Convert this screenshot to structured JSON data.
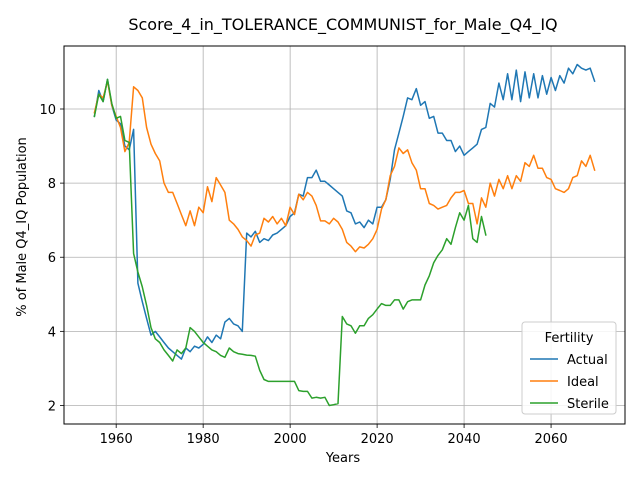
{
  "chart_data": {
    "type": "line",
    "title": "Score_4_in_TOLERANCE_COMMUNIST_for_Male_Q4_IQ",
    "xlabel": "Years",
    "ylabel": "% of Male Q4_IQ Population",
    "xlim": [
      1948,
      2077
    ],
    "ylim": [
      1.5,
      11.7
    ],
    "xticks": [
      1960,
      1980,
      2000,
      2020,
      2040,
      2060
    ],
    "yticks": [
      2,
      4,
      6,
      8,
      10
    ],
    "grid": true,
    "legend": {
      "title": "Fertility",
      "placement": "lower right"
    },
    "series": [
      {
        "name": "Actual",
        "color": "#1f77b4",
        "x": [
          1955,
          1956,
          1957,
          1958,
          1959,
          1960,
          1961,
          1962,
          1963,
          1964,
          1965,
          1966,
          1967,
          1968,
          1969,
          1970,
          1971,
          1972,
          1973,
          1974,
          1975,
          1976,
          1977,
          1978,
          1979,
          1980,
          1981,
          1982,
          1983,
          1984,
          1985,
          1986,
          1987,
          1988,
          1989,
          1990,
          1991,
          1992,
          1993,
          1994,
          1995,
          1996,
          1997,
          1998,
          1999,
          2000,
          2001,
          2002,
          2003,
          2004,
          2005,
          2006,
          2007,
          2008,
          2009,
          2010,
          2011,
          2012,
          2013,
          2014,
          2015,
          2016,
          2017,
          2018,
          2019,
          2020,
          2021,
          2022,
          2023,
          2024,
          2025,
          2026,
          2027,
          2028,
          2029,
          2030,
          2031,
          2032,
          2033,
          2034,
          2035,
          2036,
          2037,
          2038,
          2039,
          2040,
          2041,
          2042,
          2043,
          2044,
          2045,
          2046,
          2047,
          2048,
          2049,
          2050,
          2051,
          2052,
          2053,
          2054,
          2055,
          2056,
          2057,
          2058,
          2059,
          2060,
          2061,
          2062,
          2063,
          2064,
          2065,
          2066,
          2067,
          2068,
          2069,
          2070
        ],
        "values": [
          9.8,
          10.5,
          10.2,
          10.8,
          10.1,
          9.7,
          9.6,
          9.0,
          8.9,
          9.45,
          5.3,
          4.8,
          4.35,
          3.9,
          4.0,
          3.85,
          3.7,
          3.55,
          3.45,
          3.35,
          3.25,
          3.55,
          3.45,
          3.6,
          3.55,
          3.65,
          3.85,
          3.7,
          3.9,
          3.8,
          4.25,
          4.35,
          4.2,
          4.15,
          4.0,
          6.65,
          6.55,
          6.7,
          6.4,
          6.5,
          6.45,
          6.6,
          6.65,
          6.75,
          6.85,
          7.1,
          7.2,
          7.7,
          7.65,
          8.15,
          8.15,
          8.35,
          8.05,
          8.05,
          7.95,
          7.85,
          7.75,
          7.65,
          7.25,
          7.2,
          6.9,
          6.95,
          6.8,
          7.0,
          6.9,
          7.35,
          7.35,
          7.55,
          8.1,
          8.9,
          9.35,
          9.8,
          10.3,
          10.25,
          10.55,
          10.1,
          10.2,
          9.75,
          9.8,
          9.35,
          9.35,
          9.15,
          9.15,
          8.85,
          9.0,
          8.75,
          8.85,
          8.95,
          9.05,
          9.45,
          9.5,
          10.15,
          10.05,
          10.7,
          10.25,
          10.95,
          10.25,
          11.05,
          10.2,
          11.0,
          10.3,
          10.95,
          10.3,
          10.9,
          10.4,
          10.85,
          10.5,
          10.9,
          10.7,
          11.1,
          10.95,
          11.2,
          11.1,
          11.05,
          11.1,
          10.75
        ]
      },
      {
        "name": "Ideal",
        "color": "#ff7f0e",
        "x": [
          1955,
          1956,
          1957,
          1958,
          1959,
          1960,
          1961,
          1962,
          1963,
          1964,
          1965,
          1966,
          1967,
          1968,
          1969,
          1970,
          1971,
          1972,
          1973,
          1974,
          1975,
          1976,
          1977,
          1978,
          1979,
          1980,
          1981,
          1982,
          1983,
          1984,
          1985,
          1986,
          1987,
          1988,
          1989,
          1990,
          1991,
          1992,
          1993,
          1994,
          1995,
          1996,
          1997,
          1998,
          1999,
          2000,
          2001,
          2002,
          2003,
          2004,
          2005,
          2006,
          2007,
          2008,
          2009,
          2010,
          2011,
          2012,
          2013,
          2014,
          2015,
          2016,
          2017,
          2018,
          2019,
          2020,
          2021,
          2022,
          2023,
          2024,
          2025,
          2026,
          2027,
          2028,
          2029,
          2030,
          2031,
          2032,
          2033,
          2034,
          2035,
          2036,
          2037,
          2038,
          2039,
          2040,
          2041,
          2042,
          2043,
          2044,
          2045,
          2046,
          2047,
          2048,
          2049,
          2050,
          2051,
          2052,
          2053,
          2054,
          2055,
          2056,
          2057,
          2058,
          2059,
          2060,
          2061,
          2062,
          2063,
          2064,
          2065,
          2066,
          2067,
          2068,
          2069,
          2070
        ],
        "values": [
          9.9,
          10.4,
          10.3,
          10.75,
          10.1,
          9.8,
          9.5,
          8.85,
          9.1,
          10.6,
          10.5,
          10.3,
          9.5,
          9.05,
          8.8,
          8.6,
          8.0,
          7.75,
          7.75,
          7.45,
          7.15,
          6.85,
          7.25,
          6.85,
          7.35,
          7.2,
          7.9,
          7.5,
          8.15,
          7.95,
          7.75,
          7.0,
          6.9,
          6.75,
          6.55,
          6.45,
          6.3,
          6.6,
          6.65,
          7.05,
          6.95,
          7.1,
          6.9,
          7.05,
          6.85,
          7.35,
          7.15,
          7.7,
          7.55,
          7.75,
          7.65,
          7.4,
          6.98,
          6.98,
          6.9,
          7.05,
          6.95,
          6.75,
          6.4,
          6.3,
          6.15,
          6.28,
          6.25,
          6.35,
          6.5,
          6.75,
          7.3,
          7.55,
          8.2,
          8.45,
          8.95,
          8.8,
          8.9,
          8.55,
          8.35,
          7.85,
          7.85,
          7.45,
          7.4,
          7.3,
          7.35,
          7.4,
          7.6,
          7.75,
          7.75,
          7.8,
          7.45,
          7.45,
          6.9,
          7.6,
          7.35,
          8.0,
          7.65,
          8.1,
          7.85,
          8.2,
          7.85,
          8.2,
          8.05,
          8.55,
          8.45,
          8.75,
          8.4,
          8.4,
          8.15,
          8.1,
          7.85,
          7.8,
          7.75,
          7.85,
          8.15,
          8.2,
          8.6,
          8.45,
          8.75,
          8.35
        ]
      },
      {
        "name": "Sterile",
        "color": "#2ca02c",
        "x": [
          1955,
          1956,
          1957,
          1958,
          1959,
          1960,
          1961,
          1962,
          1963,
          1964,
          1965,
          1966,
          1967,
          1968,
          1969,
          1970,
          1971,
          1972,
          1973,
          1974,
          1975,
          1976,
          1977,
          1978,
          1979,
          1980,
          1981,
          1982,
          1983,
          1984,
          1985,
          1986,
          1987,
          1988,
          1989,
          1990,
          1991,
          1992,
          1993,
          1994,
          1995,
          1996,
          1997,
          1998,
          1999,
          2000,
          2001,
          2002,
          2003,
          2004,
          2005,
          2006,
          2007,
          2008,
          2009,
          2010,
          2011,
          2012,
          2013,
          2014,
          2015,
          2016,
          2017,
          2018,
          2019,
          2020,
          2021,
          2022,
          2023,
          2024,
          2025,
          2026,
          2027,
          2028,
          2029,
          2030,
          2031,
          2032,
          2033,
          2034,
          2035,
          2036,
          2037,
          2038,
          2039,
          2040,
          2041,
          2042,
          2043,
          2044,
          2045
        ],
        "values": [
          9.8,
          10.4,
          10.2,
          10.8,
          10.15,
          9.75,
          9.8,
          9.15,
          9.1,
          6.1,
          5.6,
          5.2,
          4.7,
          4.1,
          3.8,
          3.7,
          3.5,
          3.35,
          3.2,
          3.5,
          3.4,
          3.55,
          4.1,
          4.0,
          3.85,
          3.7,
          3.6,
          3.5,
          3.45,
          3.35,
          3.3,
          3.55,
          3.45,
          3.4,
          3.38,
          3.36,
          3.35,
          3.33,
          2.95,
          2.7,
          2.65,
          2.65,
          2.65,
          2.65,
          2.65,
          2.65,
          2.65,
          2.4,
          2.38,
          2.38,
          2.2,
          2.22,
          2.2,
          2.22,
          2.0,
          2.02,
          2.05,
          4.4,
          4.2,
          4.15,
          3.95,
          4.15,
          4.15,
          4.35,
          4.45,
          4.6,
          4.75,
          4.7,
          4.7,
          4.85,
          4.85,
          4.6,
          4.8,
          4.85,
          4.85,
          4.85,
          5.25,
          5.5,
          5.85,
          6.05,
          6.2,
          6.5,
          6.35,
          6.8,
          7.2,
          7.0,
          7.4,
          6.5,
          6.4,
          7.1,
          6.6
        ]
      }
    ]
  }
}
